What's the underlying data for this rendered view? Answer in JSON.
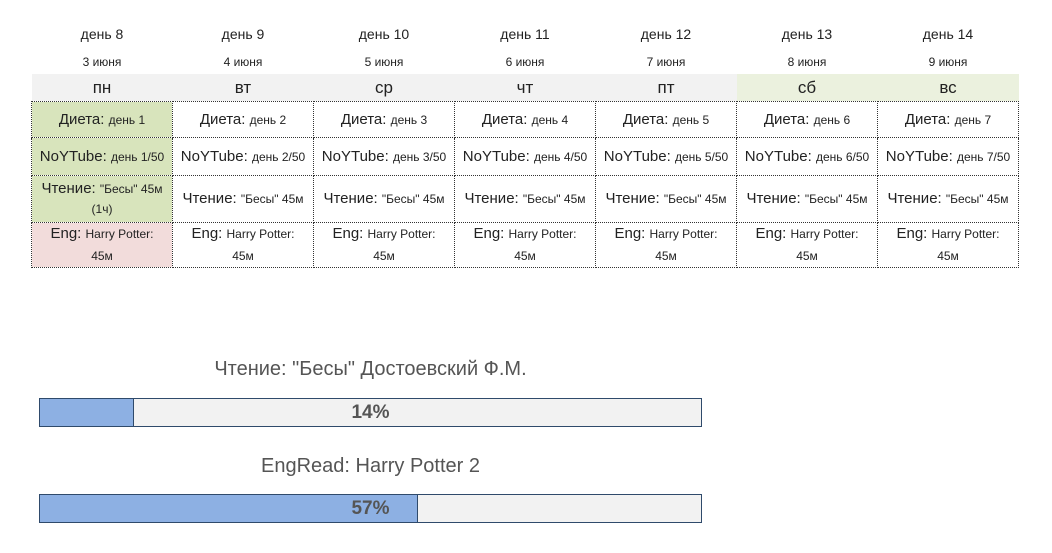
{
  "days": [
    {
      "day": "день 8",
      "date": "3 июня",
      "weekday": "пн",
      "weekend": false,
      "diet": "день 1",
      "noytube": "день 1/50",
      "reading": "\"Бесы\" 45м",
      "reading_extra": "(1ч)",
      "eng": "Harry Potter:",
      "eng_time": "45м"
    },
    {
      "day": "день 9",
      "date": "4 июня",
      "weekday": "вт",
      "weekend": false,
      "diet": "день 2",
      "noytube": "день 2/50",
      "reading": "\"Бесы\" 45м",
      "eng": "Harry Potter:",
      "eng_time": "45м"
    },
    {
      "day": "день 10",
      "date": "5 июня",
      "weekday": "ср",
      "weekend": false,
      "diet": "день 3",
      "noytube": "день 3/50",
      "reading": "\"Бесы\" 45м",
      "eng": "Harry Potter:",
      "eng_time": "45м"
    },
    {
      "day": "день 11",
      "date": "6 июня",
      "weekday": "чт",
      "weekend": false,
      "diet": "день 4",
      "noytube": "день 4/50",
      "reading": "\"Бесы\" 45м",
      "eng": "Harry Potter:",
      "eng_time": "45м"
    },
    {
      "day": "день 12",
      "date": "7 июня",
      "weekday": "пт",
      "weekend": false,
      "diet": "день 5",
      "noytube": "день 5/50",
      "reading": "\"Бесы\" 45м",
      "eng": "Harry Potter:",
      "eng_time": "45м"
    },
    {
      "day": "день 13",
      "date": "8 июня",
      "weekday": "сб",
      "weekend": true,
      "diet": "день 6",
      "noytube": "день 6/50",
      "reading": "\"Бесы\" 45м",
      "eng": "Harry Potter:",
      "eng_time": "45м"
    },
    {
      "day": "день 14",
      "date": "9 июня",
      "weekday": "вс",
      "weekend": true,
      "diet": "день 7",
      "noytube": "день 7/50",
      "reading": "\"Бесы\" 45м",
      "eng": "Harry Potter:",
      "eng_time": "45м"
    }
  ],
  "labels": {
    "diet": "Диета:",
    "noytube": "NoYTube:",
    "reading": "Чтение:",
    "eng": "Eng:"
  },
  "progress": [
    {
      "title": "Чтение: \"Бесы\" Достоевский Ф.М.",
      "value": 14,
      "label": "14%"
    },
    {
      "title": "EngRead: Harry Potter 2",
      "value": 57,
      "label": "57%"
    }
  ],
  "colors": {
    "done": "#d8e4bc",
    "missed": "#f2dcdb",
    "bar_fill": "#8db0e3",
    "bar_bg": "#f2f2f2"
  }
}
